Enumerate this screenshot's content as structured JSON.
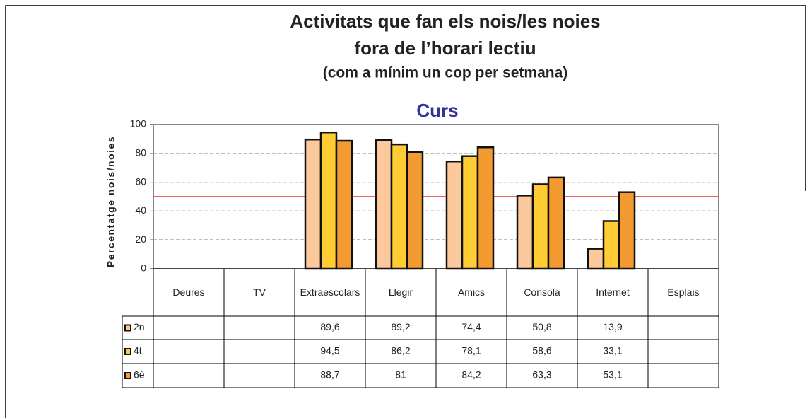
{
  "chart_data": {
    "type": "bar",
    "title": "Activitats que fan els nois/les noies",
    "title_line2": "fora de l’horari lectiu",
    "subtitle": "(com a mínim un cop per setmana)",
    "plot_title": "Curs",
    "y_label": "Percentatge nois/noies",
    "categories": [
      "Deures",
      "TV",
      "Extraescolars",
      "Llegir",
      "Amics",
      "Consola",
      "Internet",
      "Esplais"
    ],
    "series": [
      {
        "name": "2n",
        "color": "#fcc99c",
        "values": [
          null,
          null,
          89.6,
          89.2,
          74.4,
          50.8,
          13.9,
          null
        ],
        "value_labels": [
          null,
          null,
          "89,6",
          "89,2",
          "74,4",
          "50,8",
          "13,9",
          null
        ]
      },
      {
        "name": "4t",
        "color": "#ffcc33",
        "values": [
          null,
          null,
          94.5,
          86.2,
          78.1,
          58.6,
          33.1,
          null
        ],
        "value_labels": [
          null,
          null,
          "94,5",
          "86,2",
          "78,1",
          "58,6",
          "33,1",
          null
        ]
      },
      {
        "name": "6è",
        "color": "#f39a30",
        "values": [
          null,
          null,
          88.7,
          81,
          84.2,
          63.3,
          53.1,
          null
        ],
        "value_labels": [
          null,
          null,
          "88,7",
          "81",
          "84,2",
          "63,3",
          "53,1",
          null
        ]
      }
    ],
    "ylim": [
      0,
      100
    ],
    "yticks": [
      0,
      20,
      40,
      60,
      80,
      100
    ],
    "grid": true,
    "reference_line": {
      "value": 50,
      "color": "#e8302a"
    }
  }
}
